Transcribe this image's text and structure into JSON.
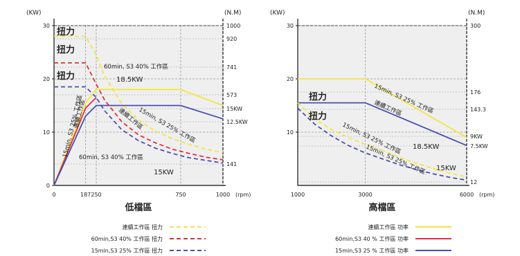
{
  "colors": {
    "continuous": "#f2e640",
    "s3_40": "#e0303a",
    "s3_25": "#4a4fb0",
    "plot_bg": "#efefef",
    "grid": "#999999"
  },
  "chart_data": [
    {
      "type": "line",
      "title": "低檔區",
      "xlabel": "(rpm)",
      "ylabel_left": "(KW)",
      "ylabel_right": "(N.M)",
      "xlim": [
        0,
        1000
      ],
      "ylim": [
        0,
        30
      ],
      "xticks": [
        "0",
        "187",
        "250",
        "750",
        "1000"
      ],
      "yticks_left": [
        "0",
        "10",
        "20",
        "30"
      ],
      "yticks_right": [
        "1000",
        "920",
        "741",
        "573",
        "15KW",
        "12.5KW",
        "141"
      ],
      "labels": {
        "torque_1": "扭力",
        "torque_2": "扭力",
        "torque_3": "扭力",
        "ann_s3_40_top": "60min, S3 40% 工作區",
        "ann_18_5": "18.5KW",
        "ann_s3_25_vert": "15min, S3 25% 工作區",
        "ann_cont_vert": "連續工作區",
        "ann_cont_diag": "連續工作區",
        "ann_s3_25_diag": "15min, S3 25% 工作區",
        "ann_s3_40_bottom": "60min, S3 40% 工作區",
        "ann_15kw": "15KW"
      },
      "series": [
        {
          "name": "連續工作區 扭力",
          "color": "continuous",
          "style": "dashed",
          "x": [
            0,
            187,
            250,
            300,
            400,
            500,
            600,
            700,
            800,
            900,
            1000
          ],
          "y": [
            28,
            28,
            24.5,
            20.5,
            15.4,
            12.3,
            10.2,
            8.8,
            7.7,
            6.8,
            6.2
          ]
        },
        {
          "name": "60min,S3 40% 工作區 扭力",
          "color": "s3_40",
          "style": "dashed",
          "x": [
            0,
            187,
            250,
            300,
            400,
            500,
            600,
            700,
            800,
            900,
            1000
          ],
          "y": [
            23,
            23,
            19,
            16,
            12,
            9.5,
            8,
            6.8,
            6,
            5.3,
            4.8
          ]
        },
        {
          "name": "15min,S3 25% 工作區 扭力",
          "color": "s3_25",
          "style": "dashed",
          "x": [
            0,
            187,
            250,
            300,
            400,
            500,
            600,
            700,
            800,
            900,
            1000
          ],
          "y": [
            18.5,
            18.5,
            16.5,
            14,
            10.5,
            8.4,
            7,
            6,
            5.2,
            4.7,
            4.2
          ]
        },
        {
          "name": "",
          "color": "continuous",
          "style": "solid",
          "x": [
            0,
            187,
            250,
            750,
            1000
          ],
          "y": [
            0,
            15.5,
            18,
            18,
            15
          ]
        },
        {
          "name": "",
          "color": "s3_40",
          "style": "solid",
          "x": [
            0,
            187,
            250
          ],
          "y": [
            0,
            14.5,
            16.5
          ]
        },
        {
          "name": "",
          "color": "s3_25",
          "style": "solid",
          "x": [
            0,
            187,
            250,
            750,
            1000
          ],
          "y": [
            0,
            13,
            15,
            15,
            12.5
          ]
        }
      ]
    },
    {
      "type": "line",
      "title": "高檔區",
      "xlabel": "(rpm)",
      "ylabel_left": "(KW)",
      "ylabel_right": "(N.M)",
      "xlim": [
        1000,
        6000
      ],
      "ylim": [
        0,
        30
      ],
      "xticks": [
        "1000",
        "3000",
        "6000"
      ],
      "yticks_left": [
        "10",
        "20",
        "30"
      ],
      "yticks_right": [
        "300",
        "176",
        "143.3",
        "9KW",
        "7.5KW",
        "12"
      ],
      "labels": {
        "torque_1": "扭力",
        "torque_2": "扭力",
        "ann_s3_25_top": "15min, S3 25% 工作區",
        "ann_cont_top": "連續工作區",
        "ann_s3_25_mid": "15min, S3 25% 工作區",
        "ann_18_5": "18.5KW",
        "ann_s3_25_low": "15min, S3 25% 工作區",
        "ann_15kw": "15KW"
      },
      "series": [
        {
          "name": "連續工作區 功率",
          "color": "continuous",
          "style": "solid",
          "x": [
            1000,
            3000,
            6000
          ],
          "y": [
            20,
            20,
            9
          ]
        },
        {
          "name": "60min,S3 40 % 工作區 功率",
          "color": "s3_40",
          "style": "solid",
          "x": [],
          "y": []
        },
        {
          "name": "15min,S3 25 % 工作區 功率",
          "color": "s3_25",
          "style": "solid",
          "x": [
            1000,
            3000,
            6000
          ],
          "y": [
            15.5,
            15.5,
            7.5
          ]
        },
        {
          "name": "",
          "color": "continuous",
          "style": "dashed",
          "x": [
            1000,
            1500,
            2000,
            2500,
            3000,
            3500,
            4000,
            4500,
            5000,
            5500,
            6000
          ],
          "y": [
            15.5,
            12.5,
            10.5,
            9,
            7.7,
            6.6,
            5.3,
            4.2,
            3.2,
            2.3,
            1.6
          ]
        },
        {
          "name": "",
          "color": "s3_25",
          "style": "dashed",
          "x": [
            1000,
            1500,
            2000,
            2500,
            3000,
            3500,
            4000,
            4500,
            5000,
            5500,
            6000
          ],
          "y": [
            14.5,
            11.5,
            9.3,
            7.5,
            6.1,
            5,
            3.9,
            3,
            2.2,
            1.5,
            1
          ]
        }
      ]
    }
  ]
}
